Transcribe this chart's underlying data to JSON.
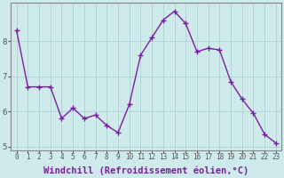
{
  "x": [
    0,
    1,
    2,
    3,
    4,
    5,
    6,
    7,
    8,
    9,
    10,
    11,
    12,
    13,
    14,
    15,
    16,
    17,
    18,
    19,
    20,
    21,
    22,
    23
  ],
  "y": [
    8.3,
    6.7,
    6.7,
    6.7,
    5.8,
    6.1,
    5.8,
    5.9,
    5.6,
    5.4,
    6.2,
    7.6,
    8.1,
    8.6,
    8.85,
    8.5,
    7.7,
    7.8,
    7.75,
    6.85,
    6.35,
    5.95,
    5.35,
    5.1
  ],
  "line_color": "#7b1ea2",
  "marker": "+",
  "marker_size": 4,
  "marker_linewidth": 1.0,
  "bg_color": "#ceeaea",
  "grid_color": "#aad4d4",
  "xlabel": "Windchill (Refroidissement éolien,°C)",
  "xlim": [
    -0.5,
    23.5
  ],
  "ylim": [
    4.9,
    9.1
  ],
  "yticks": [
    5,
    6,
    7,
    8
  ],
  "xticks": [
    0,
    1,
    2,
    3,
    4,
    5,
    6,
    7,
    8,
    9,
    10,
    11,
    12,
    13,
    14,
    15,
    16,
    17,
    18,
    19,
    20,
    21,
    22,
    23
  ],
  "spine_color": "#888888",
  "tick_color": "#555555",
  "xlabel_color": "#7b1ea2",
  "xlabel_fontsize": 7.5,
  "xtick_fontsize": 5.5,
  "ytick_fontsize": 6.5,
  "linewidth": 1.0
}
